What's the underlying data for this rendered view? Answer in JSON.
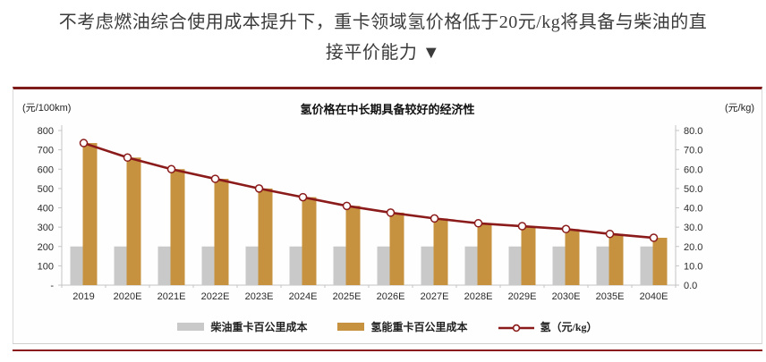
{
  "header": {
    "line1": "不考虑燃油综合使用成本提升下，重卡领域氢价格低于20元/kg将具备与柴油的直",
    "line2": "接平价能力 ▼"
  },
  "panel": {
    "accent_color": "#8b1b1b",
    "border_color": "#cfcfcf"
  },
  "chart": {
    "title": "氢价格在中长期具备较好的经济性",
    "left_axis_unit": "(元/100km)",
    "right_axis_unit": "(元/kg)"
  },
  "chart_data": {
    "type": "bar",
    "subtype": "clustered bars with secondary-axis line",
    "title": "氢价格在中长期具备较好的经济性",
    "categories": [
      "2019",
      "2020E",
      "2021E",
      "2022E",
      "2023E",
      "2024E",
      "2025E",
      "2026E",
      "2027E",
      "2028E",
      "2029E",
      "2030E",
      "2035E",
      "2040E"
    ],
    "series": [
      {
        "name": "柴油重卡百公里成本",
        "type": "bar",
        "axis": "left",
        "color": "#c9c9c9",
        "values": [
          200,
          200,
          200,
          200,
          200,
          200,
          200,
          200,
          200,
          200,
          200,
          200,
          200,
          200
        ]
      },
      {
        "name": "氢能重卡百公里成本",
        "type": "bar",
        "axis": "left",
        "color": "#c6923f",
        "values": [
          735,
          660,
          600,
          550,
          500,
          455,
          410,
          375,
          345,
          320,
          305,
          290,
          265,
          245
        ]
      },
      {
        "name": "氢（元/kg）",
        "type": "line",
        "axis": "right",
        "color": "#8b1b1b",
        "marker": "open-circle",
        "values": [
          73.5,
          66.0,
          60.0,
          55.0,
          50.0,
          45.5,
          41.0,
          37.5,
          34.5,
          32.0,
          30.5,
          29.0,
          26.5,
          24.5
        ]
      }
    ],
    "left_axis": {
      "label": "(元/100km)",
      "min": 0,
      "max": 800,
      "step": 100,
      "zero_label": "-"
    },
    "right_axis": {
      "label": "(元/kg)",
      "min": 0,
      "max": 80,
      "step": 10,
      "decimals": 1
    },
    "grid": false,
    "legend_position": "bottom"
  }
}
